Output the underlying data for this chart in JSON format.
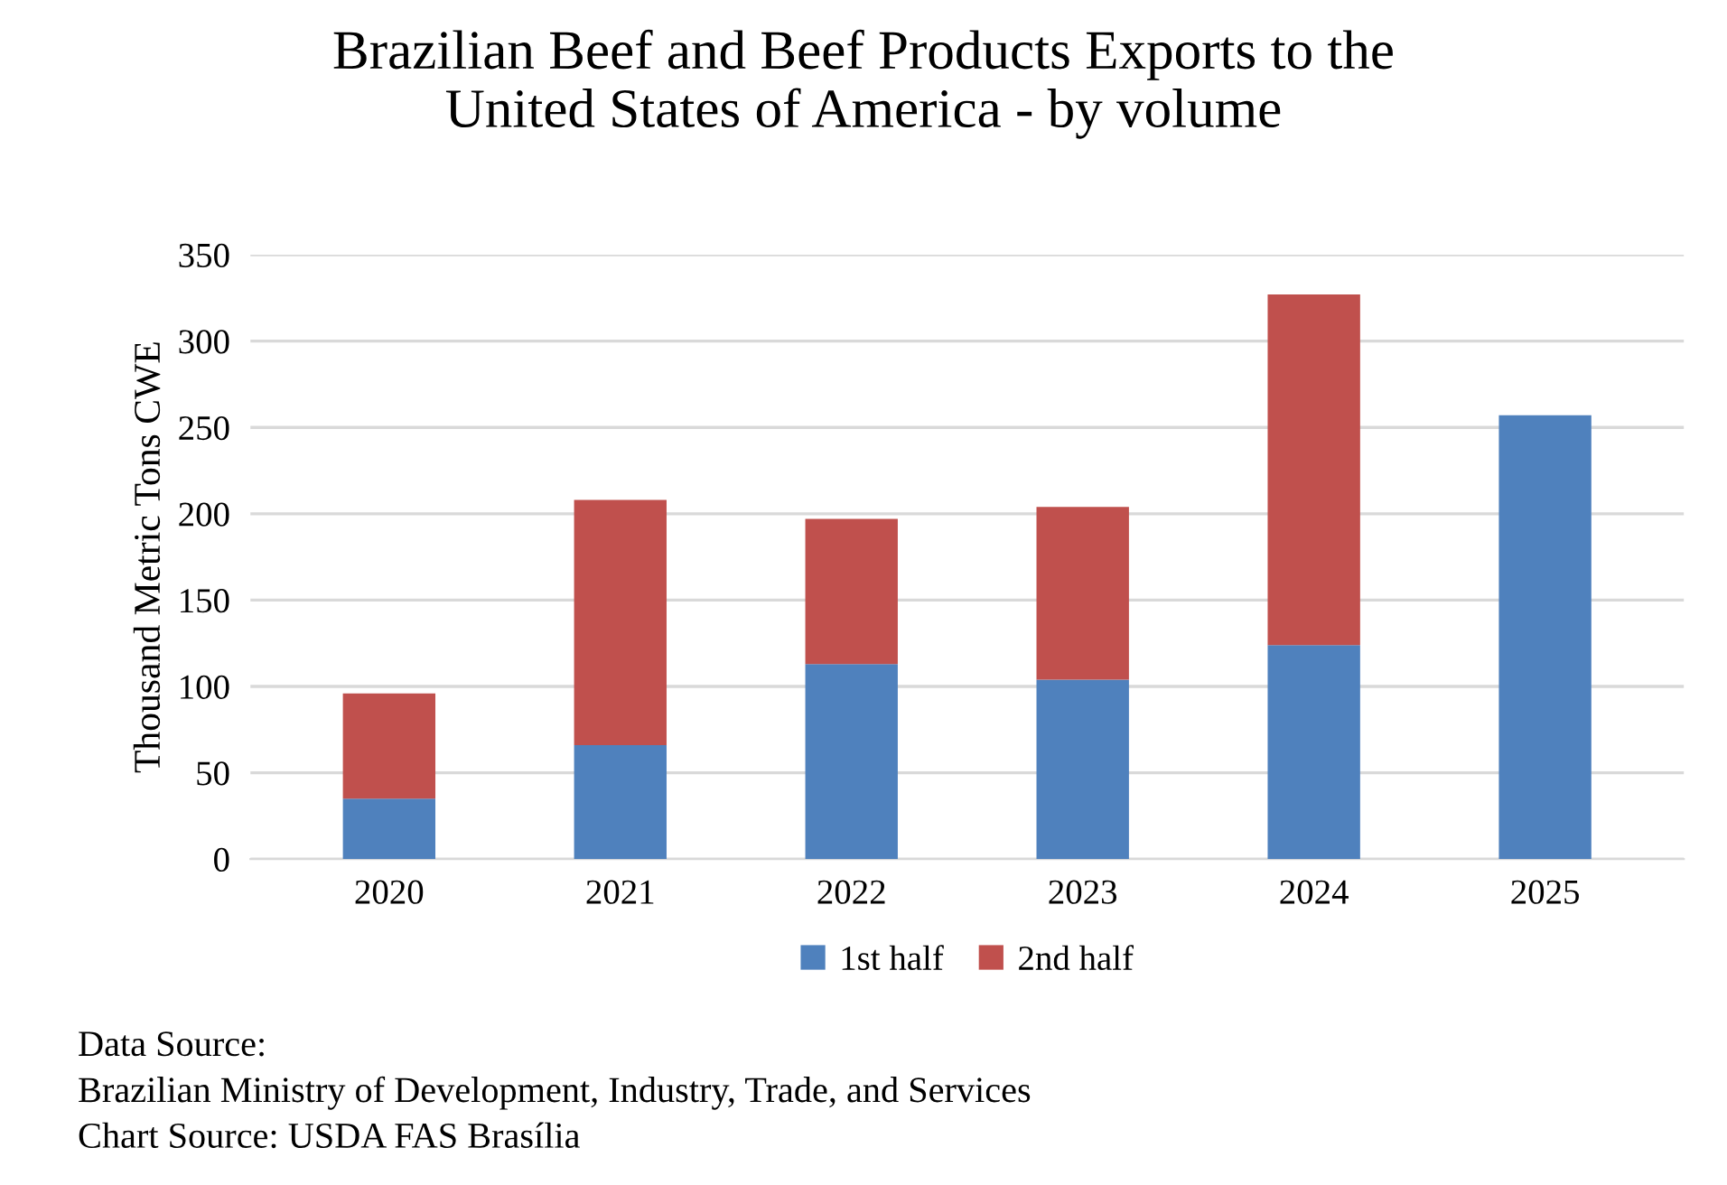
{
  "chart_data": {
    "type": "bar",
    "stacked": true,
    "title": "Brazilian Beef and Beef Products Exports to the\nUnited States of America - by volume",
    "ylabel": "Thousand Metric Tons CWE",
    "categories": [
      "2020",
      "2021",
      "2022",
      "2023",
      "2024",
      "2025"
    ],
    "series": [
      {
        "name": "1st half",
        "color": "#4f81bd",
        "values": [
          35,
          66,
          113,
          104,
          124,
          257
        ]
      },
      {
        "name": "2nd half",
        "color": "#c0504d",
        "values": [
          61,
          142,
          84,
          100,
          203,
          null
        ]
      }
    ],
    "ylim": [
      0,
      350
    ],
    "yticks": [
      0,
      50,
      100,
      150,
      200,
      250,
      300,
      350
    ],
    "grid": "y",
    "legend": "bottom",
    "annotations": [
      "Data Source:\nBrazilian Ministry of Development, Industry, Trade, and Services\nChart Source: USDA FAS Brasília"
    ]
  }
}
